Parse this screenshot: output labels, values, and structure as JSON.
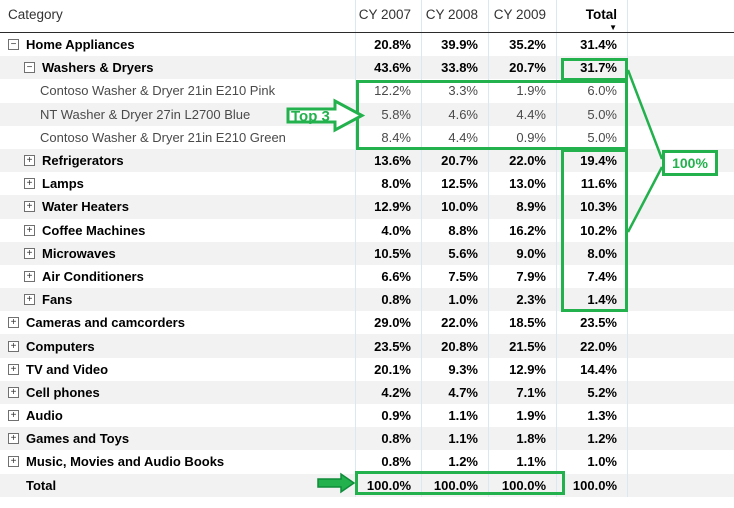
{
  "header": {
    "category_label": "Category",
    "sort_icon": "▼"
  },
  "chart_data": {
    "type": "table",
    "title": "Category share matrix by calendar year (% of column total)",
    "columns": [
      "Category",
      "CY 2007",
      "CY 2008",
      "CY 2009",
      "Total"
    ],
    "rows": [
      {
        "label": "Home Appliances",
        "level": 0,
        "expander": "minus",
        "bold": true,
        "values": [
          "20.8%",
          "39.9%",
          "35.2%",
          "31.4%"
        ]
      },
      {
        "label": "Washers & Dryers",
        "level": 1,
        "expander": "minus",
        "bold": true,
        "values": [
          "43.6%",
          "33.8%",
          "20.7%",
          "31.7%"
        ]
      },
      {
        "label": "Contoso Washer & Dryer 21in E210 Pink",
        "level": 2,
        "expander": null,
        "bold": false,
        "values": [
          "12.2%",
          "3.3%",
          "1.9%",
          "6.0%"
        ]
      },
      {
        "label": "NT Washer & Dryer 27in L2700 Blue",
        "level": 2,
        "expander": null,
        "bold": false,
        "values": [
          "5.8%",
          "4.6%",
          "4.4%",
          "5.0%"
        ]
      },
      {
        "label": "Contoso Washer & Dryer 21in E210 Green",
        "level": 2,
        "expander": null,
        "bold": false,
        "values": [
          "8.4%",
          "4.4%",
          "0.9%",
          "5.0%"
        ]
      },
      {
        "label": "Refrigerators",
        "level": 1,
        "expander": "plus",
        "bold": true,
        "values": [
          "13.6%",
          "20.7%",
          "22.0%",
          "19.4%"
        ]
      },
      {
        "label": "Lamps",
        "level": 1,
        "expander": "plus",
        "bold": true,
        "values": [
          "8.0%",
          "12.5%",
          "13.0%",
          "11.6%"
        ]
      },
      {
        "label": "Water Heaters",
        "level": 1,
        "expander": "plus",
        "bold": true,
        "values": [
          "12.9%",
          "10.0%",
          "8.9%",
          "10.3%"
        ]
      },
      {
        "label": "Coffee Machines",
        "level": 1,
        "expander": "plus",
        "bold": true,
        "values": [
          "4.0%",
          "8.8%",
          "16.2%",
          "10.2%"
        ]
      },
      {
        "label": "Microwaves",
        "level": 1,
        "expander": "plus",
        "bold": true,
        "values": [
          "10.5%",
          "5.6%",
          "9.0%",
          "8.0%"
        ]
      },
      {
        "label": "Air Conditioners",
        "level": 1,
        "expander": "plus",
        "bold": true,
        "values": [
          "6.6%",
          "7.5%",
          "7.9%",
          "7.4%"
        ]
      },
      {
        "label": "Fans",
        "level": 1,
        "expander": "plus",
        "bold": true,
        "values": [
          "0.8%",
          "1.0%",
          "2.3%",
          "1.4%"
        ]
      },
      {
        "label": "Cameras and camcorders",
        "level": 0,
        "expander": "plus",
        "bold": true,
        "values": [
          "29.0%",
          "22.0%",
          "18.5%",
          "23.5%"
        ]
      },
      {
        "label": "Computers",
        "level": 0,
        "expander": "plus",
        "bold": true,
        "values": [
          "23.5%",
          "20.8%",
          "21.5%",
          "22.0%"
        ]
      },
      {
        "label": "TV and Video",
        "level": 0,
        "expander": "plus",
        "bold": true,
        "values": [
          "20.1%",
          "9.3%",
          "12.9%",
          "14.4%"
        ]
      },
      {
        "label": "Cell phones",
        "level": 0,
        "expander": "plus",
        "bold": true,
        "values": [
          "4.2%",
          "4.7%",
          "7.1%",
          "5.2%"
        ]
      },
      {
        "label": "Audio",
        "level": 0,
        "expander": "plus",
        "bold": true,
        "values": [
          "0.9%",
          "1.1%",
          "1.9%",
          "1.3%"
        ]
      },
      {
        "label": "Games and Toys",
        "level": 0,
        "expander": "plus",
        "bold": true,
        "values": [
          "0.8%",
          "1.1%",
          "1.8%",
          "1.2%"
        ]
      },
      {
        "label": "Music, Movies and Audio Books",
        "level": 0,
        "expander": "plus",
        "bold": true,
        "values": [
          "0.8%",
          "1.2%",
          "1.1%",
          "1.0%"
        ]
      },
      {
        "label": "Total",
        "level": 0,
        "expander": null,
        "bold": true,
        "values": [
          "100.0%",
          "100.0%",
          "100.0%",
          "100.0%"
        ]
      }
    ]
  },
  "annotations": {
    "top3_label": "Top 3",
    "hundred_label": "100%",
    "accent_color": "#22b14c"
  }
}
